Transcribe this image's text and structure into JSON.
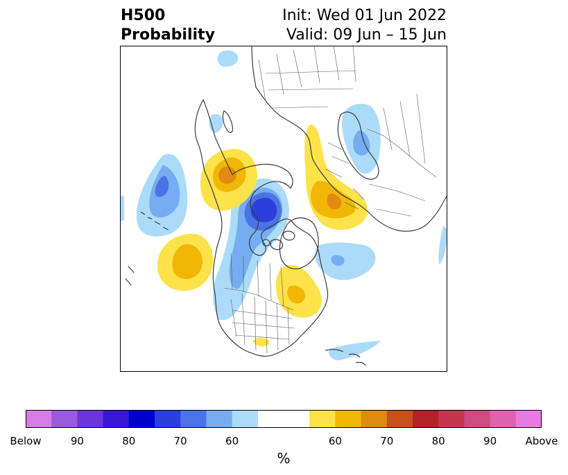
{
  "header": {
    "title_line1": "H500",
    "title_line2": "Probability",
    "init": "Init: Wed 01 Jun 2022",
    "valid": "Valid: 09 Jun – 15 Jun"
  },
  "colorbar": {
    "bins": [
      {
        "color": "#d77be8"
      },
      {
        "color": "#9b59de"
      },
      {
        "color": "#6b35d9"
      },
      {
        "color": "#3a17d4"
      },
      {
        "color": "#0000cc"
      },
      {
        "color": "#2a3fdc"
      },
      {
        "color": "#4a73e6"
      },
      {
        "color": "#75adf0"
      },
      {
        "color": "#acdbfa"
      },
      {
        "color": "#ffffff"
      },
      {
        "color": "#ffffff"
      },
      {
        "color": "#fde24a"
      },
      {
        "color": "#f2b705"
      },
      {
        "color": "#e08a12"
      },
      {
        "color": "#c85019"
      },
      {
        "color": "#b2232a"
      },
      {
        "color": "#c4364e"
      },
      {
        "color": "#cf4c82"
      },
      {
        "color": "#de62ae"
      },
      {
        "color": "#e97ae0"
      }
    ],
    "tick_labels": [
      {
        "text": "Below",
        "edge": 0
      },
      {
        "text": "90",
        "edge": 2
      },
      {
        "text": "80",
        "edge": 4
      },
      {
        "text": "70",
        "edge": 6
      },
      {
        "text": "60",
        "edge": 8
      },
      {
        "text": "60",
        "edge": 12
      },
      {
        "text": "70",
        "edge": 14
      },
      {
        "text": "80",
        "edge": 16
      },
      {
        "text": "90",
        "edge": 18
      },
      {
        "text": "Above",
        "edge": 20
      }
    ],
    "unit": "%"
  },
  "map": {
    "palette": {
      "below_40": "#acdbfa",
      "below_50": "#75adf0",
      "below_60": "#4a73e6",
      "below_70": "#2a3fdc",
      "above_40": "#fde24a",
      "above_50": "#f2b705",
      "above_60": "#e08a12",
      "coast": "#3a3a3a",
      "border": "#555555"
    }
  }
}
